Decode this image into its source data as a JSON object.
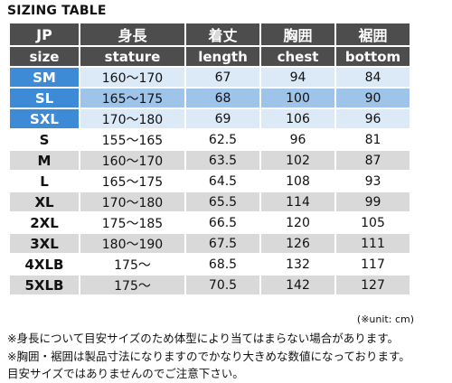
{
  "title": "SIZING TABLE",
  "header": {
    "row1": [
      "JP",
      "身長",
      "着丈",
      "胸囲",
      "裾囲"
    ],
    "row2": [
      "size",
      "stature",
      "length",
      "chest",
      "bottom"
    ]
  },
  "rows": [
    {
      "size": "SM",
      "stature": "160〜170",
      "length": "67",
      "chest": "94",
      "bottom": "84"
    },
    {
      "size": "SL",
      "stature": "165〜175",
      "length": "68",
      "chest": "100",
      "bottom": "90"
    },
    {
      "size": "SXL",
      "stature": "170〜180",
      "length": "69",
      "chest": "106",
      "bottom": "96"
    },
    {
      "size": "S",
      "stature": "155〜165",
      "length": "62.5",
      "chest": "96",
      "bottom": "81"
    },
    {
      "size": "M",
      "stature": "160〜170",
      "length": "63.5",
      "chest": "102",
      "bottom": "87"
    },
    {
      "size": "L",
      "stature": "165〜175",
      "length": "64.5",
      "chest": "108",
      "bottom": "93"
    },
    {
      "size": "XL",
      "stature": "170〜180",
      "length": "65.5",
      "chest": "114",
      "bottom": "99"
    },
    {
      "size": "2XL",
      "stature": "175〜185",
      "length": "66.5",
      "chest": "120",
      "bottom": "105"
    },
    {
      "size": "3XL",
      "stature": "180〜190",
      "length": "67.5",
      "chest": "126",
      "bottom": "111"
    },
    {
      "size": "4XLB",
      "stature": "175〜",
      "length": "68.5",
      "chest": "132",
      "bottom": "117"
    },
    {
      "size": "5XLB",
      "stature": "175〜",
      "length": "70.5",
      "chest": "142",
      "bottom": "127"
    }
  ],
  "unit_note": "(※unit: cm)",
  "notes": [
    "※身長について目安サイズのため体型により当てはまらない場合があります。",
    "※胸囲・裾囲は製品寸法になりますのでかなり大きめな数値になっております。",
    "目安サイズではありませんのでご注意下さい。"
  ],
  "colors": {
    "header_bg": "#4d4d4d",
    "slim_size_bg": "#3d8ad6",
    "slim_light_bg": "#dce9f7",
    "slim_mid_bg": "#9ec4ea",
    "stripe_gray": "#d9d9d9"
  }
}
